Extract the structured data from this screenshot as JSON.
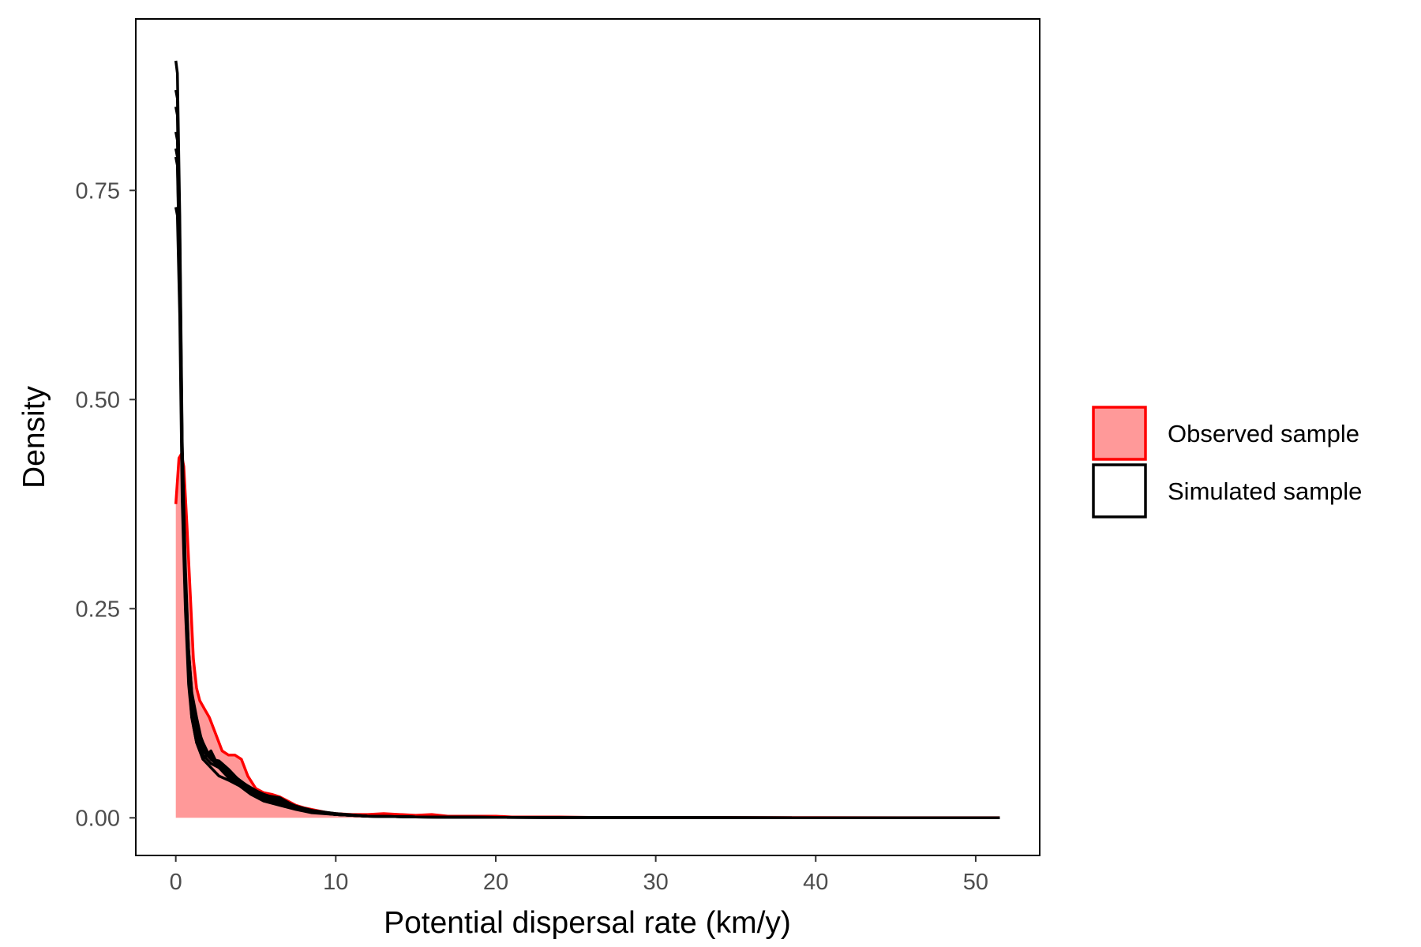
{
  "chart_data": {
    "type": "area",
    "title": "",
    "xlabel": "Potential dispersal rate (km/y)",
    "ylabel": "Density",
    "xlim": [
      -2.5,
      54
    ],
    "ylim": [
      -0.045,
      0.955
    ],
    "xticks": [
      0,
      10,
      20,
      30,
      40,
      50
    ],
    "xtick_labels": [
      "0",
      "10",
      "20",
      "30",
      "40",
      "50"
    ],
    "yticks": [
      0,
      0.25,
      0.5,
      0.75
    ],
    "ytick_labels": [
      "0.00",
      "0.25",
      "0.50",
      "0.75"
    ],
    "grid": false,
    "legend_position": "right",
    "legend": [
      {
        "label": "Observed sample",
        "fill": "#ff9999",
        "stroke": "#ff0000"
      },
      {
        "label": "Simulated sample",
        "fill": "#ffffff",
        "stroke": "#000000"
      }
    ],
    "colors": {
      "observed_fill": "#ff9999",
      "observed_line": "#ff0000",
      "simulated_line": "#000000"
    },
    "series": [
      {
        "name": "Observed sample",
        "style": "filled",
        "x": [
          0,
          0.2,
          0.35,
          0.5,
          0.7,
          0.9,
          1.1,
          1.3,
          1.5,
          1.8,
          2.1,
          2.5,
          2.9,
          3.3,
          3.7,
          4.1,
          4.5,
          5,
          5.5,
          6,
          6.5,
          7,
          7.5,
          8,
          8.5,
          9,
          9.5,
          10,
          11,
          12,
          13,
          14,
          15,
          16,
          17,
          18,
          19,
          20,
          21,
          22,
          24,
          26,
          30,
          35,
          40,
          45,
          50,
          51.5
        ],
        "y": [
          0.375,
          0.43,
          0.435,
          0.42,
          0.35,
          0.27,
          0.19,
          0.155,
          0.14,
          0.13,
          0.12,
          0.1,
          0.08,
          0.075,
          0.075,
          0.07,
          0.05,
          0.035,
          0.03,
          0.028,
          0.025,
          0.02,
          0.015,
          0.012,
          0.01,
          0.008,
          0.006,
          0.005,
          0.004,
          0.004,
          0.005,
          0.004,
          0.003,
          0.004,
          0.002,
          0.002,
          0.002,
          0.002,
          0.001,
          0.001,
          0.001,
          0.0005,
          0.0004,
          0.0003,
          0.0003,
          0.0002,
          0.0002,
          0.0002
        ]
      },
      {
        "name": "",
        "style": "line",
        "x": [
          0,
          0.1,
          0.25,
          0.4,
          0.6,
          0.8,
          1,
          1.3,
          1.7,
          2.2,
          2.7,
          3.3,
          4,
          4.7,
          5.5,
          6.5,
          7.5,
          8.5,
          10,
          12,
          15,
          20,
          30,
          40,
          51.5
        ],
        "y": [
          0.905,
          0.89,
          0.72,
          0.45,
          0.3,
          0.2,
          0.15,
          0.11,
          0.09,
          0.07,
          0.065,
          0.055,
          0.045,
          0.035,
          0.028,
          0.02,
          0.013,
          0.008,
          0.004,
          0.002,
          0.001,
          0.0005,
          0.0002,
          0.0001,
          0.0001
        ]
      },
      {
        "name": "",
        "style": "line",
        "x": [
          0,
          0.1,
          0.25,
          0.4,
          0.6,
          0.8,
          1,
          1.3,
          1.7,
          2.2,
          2.7,
          3.3,
          4,
          4.7,
          5.5,
          6.5,
          7.5,
          8.5,
          10,
          12,
          15,
          20,
          30,
          40,
          51.5
        ],
        "y": [
          0.87,
          0.86,
          0.7,
          0.44,
          0.28,
          0.19,
          0.14,
          0.1,
          0.08,
          0.075,
          0.06,
          0.05,
          0.04,
          0.032,
          0.025,
          0.018,
          0.012,
          0.007,
          0.004,
          0.002,
          0.001,
          0.0005,
          0.0002,
          0.0001,
          0.0001
        ]
      },
      {
        "name": "",
        "style": "line",
        "x": [
          0,
          0.1,
          0.25,
          0.4,
          0.6,
          0.8,
          1,
          1.3,
          1.7,
          2.2,
          2.7,
          3.3,
          4,
          4.7,
          5.5,
          6.5,
          7.5,
          8.5,
          10,
          12,
          15,
          20,
          30,
          40,
          51.5
        ],
        "y": [
          0.82,
          0.81,
          0.66,
          0.42,
          0.27,
          0.18,
          0.13,
          0.1,
          0.075,
          0.065,
          0.06,
          0.052,
          0.042,
          0.035,
          0.028,
          0.022,
          0.014,
          0.009,
          0.005,
          0.002,
          0.001,
          0.0005,
          0.0002,
          0.0001,
          0.0001
        ]
      },
      {
        "name": "",
        "style": "line",
        "x": [
          0,
          0.1,
          0.25,
          0.4,
          0.6,
          0.8,
          1,
          1.3,
          1.7,
          2.2,
          2.7,
          3.3,
          4,
          4.7,
          5.5,
          6.5,
          7.5,
          8.5,
          10,
          12,
          15,
          20,
          30,
          40,
          51.5
        ],
        "y": [
          0.79,
          0.78,
          0.64,
          0.4,
          0.26,
          0.17,
          0.12,
          0.09,
          0.07,
          0.08,
          0.06,
          0.048,
          0.04,
          0.03,
          0.022,
          0.017,
          0.011,
          0.007,
          0.004,
          0.002,
          0.001,
          0.0005,
          0.0002,
          0.0001,
          0.0001
        ]
      },
      {
        "name": "",
        "style": "line",
        "x": [
          0,
          0.1,
          0.25,
          0.4,
          0.6,
          0.8,
          1,
          1.3,
          1.7,
          2.2,
          2.7,
          3.3,
          4,
          4.7,
          5.5,
          6.5,
          7.5,
          8.5,
          10,
          12,
          15,
          20,
          30,
          40,
          51.5
        ],
        "y": [
          0.73,
          0.72,
          0.6,
          0.38,
          0.25,
          0.16,
          0.12,
          0.09,
          0.07,
          0.06,
          0.05,
          0.045,
          0.038,
          0.028,
          0.02,
          0.015,
          0.01,
          0.006,
          0.004,
          0.002,
          0.001,
          0.0005,
          0.0002,
          0.0001,
          0.0001
        ]
      },
      {
        "name": "",
        "style": "line",
        "x": [
          0,
          0.1,
          0.25,
          0.4,
          0.6,
          0.8,
          1,
          1.3,
          1.7,
          2.2,
          2.7,
          3.3,
          4,
          4.7,
          5.5,
          6.5,
          7.5,
          8.5,
          10,
          12,
          15,
          20,
          30,
          40,
          51.5
        ],
        "y": [
          0.85,
          0.84,
          0.68,
          0.43,
          0.29,
          0.2,
          0.15,
          0.12,
          0.085,
          0.07,
          0.068,
          0.058,
          0.044,
          0.036,
          0.027,
          0.024,
          0.013,
          0.008,
          0.005,
          0.002,
          0.001,
          0.0005,
          0.0002,
          0.0001,
          0.0001
        ]
      },
      {
        "name": "",
        "style": "line",
        "x": [
          0,
          0.1,
          0.25,
          0.4,
          0.6,
          0.8,
          1,
          1.3,
          1.7,
          2.2,
          2.7,
          3.3,
          4,
          4.7,
          5.5,
          6.5,
          7.5,
          8.5,
          10,
          12,
          15,
          20,
          30,
          40,
          51.5
        ],
        "y": [
          0.8,
          0.79,
          0.65,
          0.41,
          0.27,
          0.18,
          0.135,
          0.105,
          0.08,
          0.07,
          0.062,
          0.05,
          0.041,
          0.033,
          0.026,
          0.019,
          0.012,
          0.008,
          0.004,
          0.002,
          0.001,
          0.0005,
          0.0002,
          0.0001,
          0.0001
        ]
      }
    ]
  }
}
